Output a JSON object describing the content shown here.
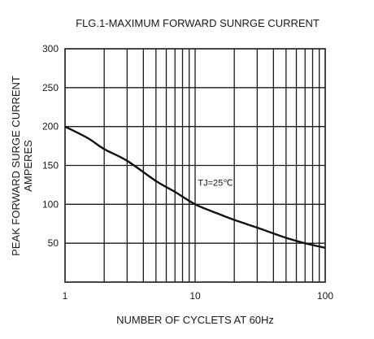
{
  "chart_data": {
    "type": "line",
    "title": "FLG.1-MAXIMUM FORWARD SUNRGE CURRENT",
    "xlabel": "NUMBER OF CYCLETS AT 60Hz",
    "ylabel": [
      "PEAK FORWARD SURGE CURRENT",
      "AMPERES"
    ],
    "x_scale": "log",
    "xlim": [
      1,
      100
    ],
    "ylim": [
      0,
      300
    ],
    "x_ticks": [
      1,
      10,
      100
    ],
    "x_tick_labels": [
      "1",
      "10",
      "100"
    ],
    "y_ticks": [
      50,
      100,
      150,
      200,
      250,
      300
    ],
    "y_tick_labels": [
      "50",
      "100",
      "150",
      "200",
      "250",
      "300"
    ],
    "grid": true,
    "annotation": "TJ=25℃",
    "annotation_at": {
      "x": 10.5,
      "y": 124
    },
    "series": [
      {
        "x": [
          1,
          1.5,
          2,
          3,
          5,
          7,
          10,
          15,
          20,
          30,
          50,
          70,
          100
        ],
        "y": [
          200,
          185,
          171,
          156,
          130,
          116,
          100,
          88,
          80,
          70,
          57,
          50,
          44
        ]
      }
    ]
  }
}
